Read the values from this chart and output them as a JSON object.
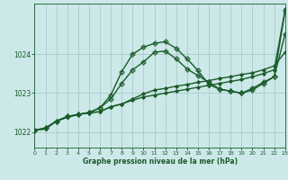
{
  "background_color": "#cce8e8",
  "grid_color": "#aacccc",
  "line_color": "#1a5c2a",
  "title": "Graphe pression niveau de la mer (hPa)",
  "xlim": [
    0,
    23
  ],
  "ylim": [
    1021.6,
    1025.3
  ],
  "yticks": [
    1022,
    1023,
    1024
  ],
  "xticks": [
    0,
    1,
    2,
    3,
    4,
    5,
    6,
    7,
    8,
    9,
    10,
    11,
    12,
    13,
    14,
    15,
    16,
    17,
    18,
    19,
    20,
    21,
    22,
    23
  ],
  "series": [
    {
      "x": [
        0,
        1,
        2,
        3,
        4,
        5,
        6,
        7,
        8,
        9,
        10,
        11,
        12,
        13,
        14,
        15,
        16,
        17,
        18,
        19,
        20,
        21,
        22,
        23
      ],
      "y": [
        1022.05,
        1022.08,
        1022.28,
        1022.38,
        1022.45,
        1022.5,
        1022.52,
        1022.65,
        1022.72,
        1022.82,
        1022.9,
        1022.95,
        1023.0,
        1023.05,
        1023.1,
        1023.15,
        1023.2,
        1023.25,
        1023.3,
        1023.35,
        1023.42,
        1023.5,
        1023.6,
        1025.15
      ],
      "marker": "D",
      "markersize": 2.0,
      "linewidth": 1.0
    },
    {
      "x": [
        0,
        1,
        2,
        3,
        4,
        5,
        6,
        7,
        8,
        9,
        10,
        11,
        12,
        13,
        14,
        15,
        16,
        17,
        18,
        19,
        20,
        21,
        22,
        23
      ],
      "y": [
        1022.05,
        1022.08,
        1022.28,
        1022.38,
        1022.45,
        1022.5,
        1022.52,
        1022.65,
        1022.72,
        1022.85,
        1022.98,
        1023.08,
        1023.12,
        1023.18,
        1023.22,
        1023.28,
        1023.32,
        1023.38,
        1023.42,
        1023.48,
        1023.52,
        1023.6,
        1023.7,
        1024.05
      ],
      "marker": "D",
      "markersize": 2.0,
      "linewidth": 1.0
    },
    {
      "x": [
        0,
        1,
        2,
        3,
        4,
        5,
        6,
        7,
        8,
        9,
        10,
        11,
        12,
        13,
        14,
        15,
        16,
        17,
        18,
        19,
        20,
        21,
        22,
        23
      ],
      "y": [
        1022.05,
        1022.1,
        1022.28,
        1022.4,
        1022.45,
        1022.5,
        1022.62,
        1022.95,
        1023.55,
        1024.0,
        1024.18,
        1024.28,
        1024.32,
        1024.15,
        1023.88,
        1023.58,
        1023.22,
        1023.1,
        1023.05,
        1023.0,
        1023.08,
        1023.25,
        1023.42,
        1025.12
      ],
      "marker": "P",
      "markersize": 3.5,
      "linewidth": 1.0
    },
    {
      "x": [
        0,
        1,
        2,
        3,
        4,
        5,
        6,
        7,
        8,
        9,
        10,
        11,
        12,
        13,
        14,
        15,
        16,
        17,
        18,
        19,
        20,
        21,
        22,
        23
      ],
      "y": [
        1022.05,
        1022.1,
        1022.28,
        1022.4,
        1022.45,
        1022.5,
        1022.62,
        1022.85,
        1023.25,
        1023.6,
        1023.8,
        1024.05,
        1024.08,
        1023.88,
        1023.62,
        1023.45,
        1023.28,
        1023.1,
        1023.05,
        1023.0,
        1023.12,
        1023.28,
        1023.42,
        1024.52
      ],
      "marker": "P",
      "markersize": 3.5,
      "linewidth": 1.0
    }
  ]
}
